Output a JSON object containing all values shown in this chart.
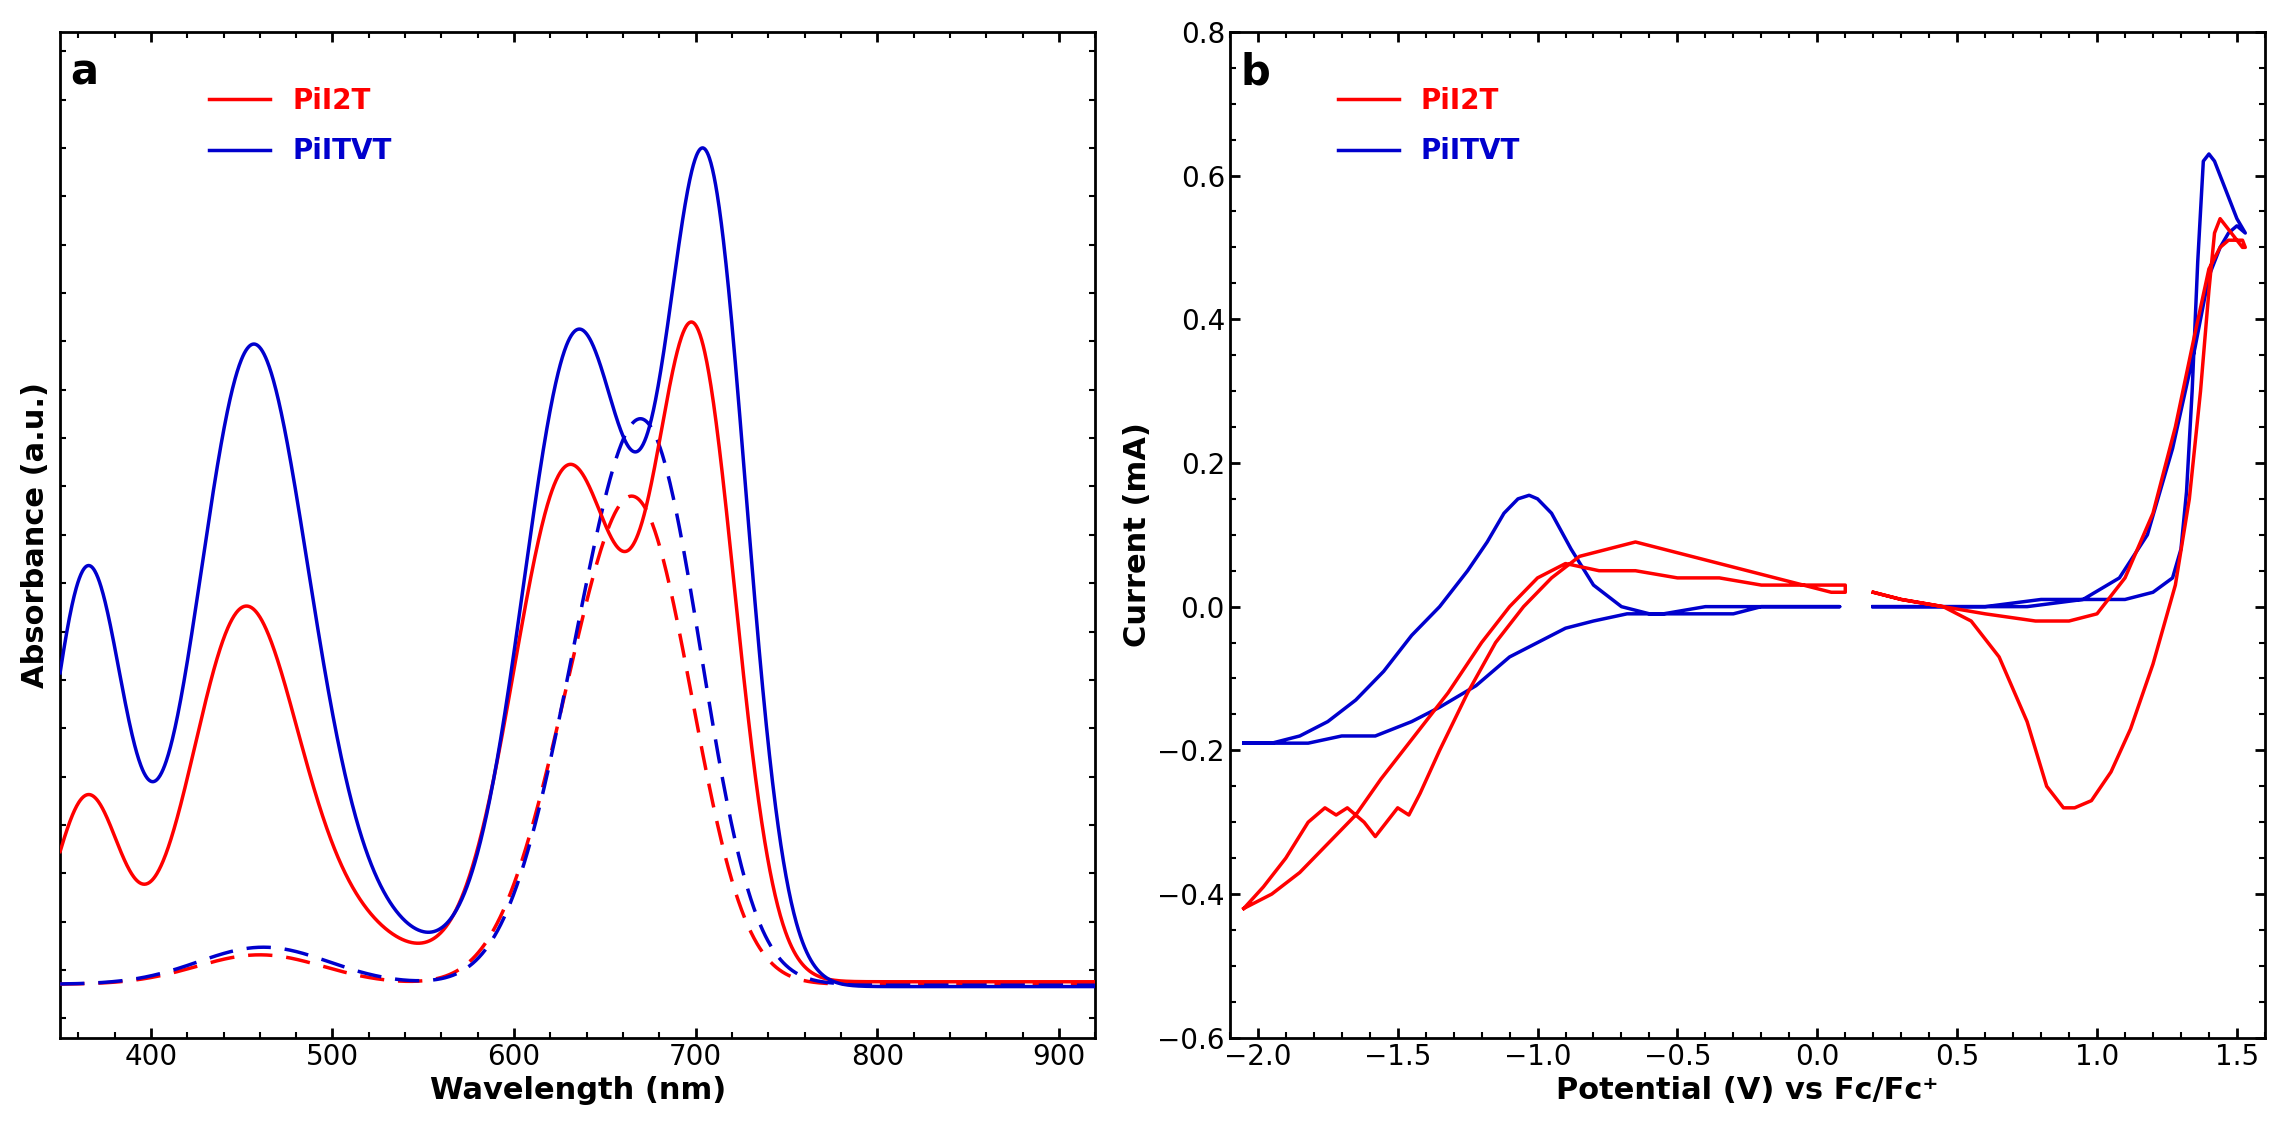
{
  "panel_a": {
    "xlabel": "Wavelength (nm)",
    "ylabel": "Absorbance (a.u.)",
    "xlim": [
      350,
      920
    ],
    "xticks": [
      400,
      500,
      600,
      700,
      800,
      900
    ]
  },
  "panel_b": {
    "xlabel": "Potential (V) vs Fc/Fc⁺",
    "ylabel": "Current (mA)",
    "xlim": [
      -2.1,
      1.6
    ],
    "ylim": [
      -0.6,
      0.8
    ],
    "xticks": [
      -2.0,
      -1.5,
      -1.0,
      -0.5,
      0.0,
      0.5,
      1.0,
      1.5
    ],
    "yticks": [
      -0.6,
      -0.4,
      -0.2,
      0.0,
      0.2,
      0.4,
      0.6,
      0.8
    ]
  },
  "fig_bgcolor": "#FFFFFF",
  "label_fontsize": 22,
  "tick_fontsize": 20,
  "legend_fontsize": 20,
  "panel_label_fontsize": 30,
  "line_width": 2.5,
  "red_color": "#FF0000",
  "blue_color": "#0000CD"
}
